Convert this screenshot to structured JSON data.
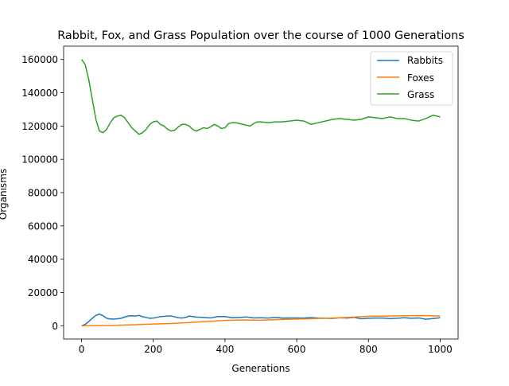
{
  "chart_data": {
    "type": "line",
    "title": "Rabbit, Fox, and Grass Population over the course of 1000 Generations",
    "xlabel": "Generations",
    "ylabel": "Organisms",
    "xlim": [
      -50,
      1050
    ],
    "ylim": [
      -8000,
      168000
    ],
    "xticks": [
      0,
      200,
      400,
      600,
      800,
      1000
    ],
    "yticks": [
      0,
      20000,
      40000,
      60000,
      80000,
      100000,
      120000,
      140000,
      160000
    ],
    "grid": false,
    "legend_position": "top-right",
    "series": [
      {
        "name": "Rabbits",
        "color": "#1f77b4",
        "x": [
          0,
          10,
          20,
          30,
          40,
          50,
          60,
          70,
          80,
          90,
          100,
          110,
          120,
          130,
          140,
          150,
          160,
          170,
          180,
          190,
          200,
          210,
          220,
          230,
          240,
          250,
          260,
          270,
          280,
          290,
          300,
          320,
          340,
          360,
          380,
          400,
          420,
          440,
          460,
          480,
          500,
          520,
          540,
          560,
          580,
          600,
          620,
          640,
          660,
          680,
          700,
          720,
          740,
          760,
          780,
          800,
          820,
          840,
          860,
          880,
          900,
          920,
          940,
          960,
          980,
          1000
        ],
        "y": [
          0,
          800,
          2500,
          4500,
          6200,
          7000,
          6000,
          4500,
          4000,
          4000,
          4200,
          4500,
          5200,
          5800,
          6000,
          5800,
          6200,
          5400,
          5000,
          4500,
          4600,
          5000,
          5500,
          5600,
          5800,
          5900,
          5300,
          4800,
          4600,
          5000,
          5800,
          5200,
          5000,
          4700,
          5500,
          5500,
          4800,
          5000,
          5300,
          4700,
          4800,
          4600,
          5000,
          4600,
          4700,
          4700,
          4600,
          4900,
          4600,
          4500,
          4400,
          4800,
          4600,
          5000,
          4200,
          4500,
          4600,
          4600,
          4300,
          4500,
          4800,
          4500,
          4700,
          3900,
          4300,
          4800
        ]
      },
      {
        "name": "Foxes",
        "color": "#ff7f0e",
        "x": [
          0,
          50,
          100,
          150,
          200,
          250,
          300,
          350,
          400,
          450,
          500,
          550,
          600,
          650,
          700,
          750,
          800,
          850,
          900,
          950,
          1000
        ],
        "y": [
          0,
          100,
          300,
          600,
          1000,
          1300,
          1900,
          2600,
          3200,
          3500,
          3300,
          3700,
          4000,
          4300,
          4600,
          5100,
          5700,
          5800,
          6000,
          6100,
          5900
        ]
      },
      {
        "name": "Grass",
        "color": "#2ca02c",
        "x": [
          0,
          10,
          20,
          30,
          40,
          50,
          60,
          70,
          80,
          90,
          100,
          110,
          120,
          130,
          140,
          150,
          160,
          170,
          180,
          190,
          200,
          210,
          220,
          230,
          240,
          250,
          260,
          270,
          280,
          290,
          300,
          310,
          320,
          330,
          340,
          350,
          360,
          370,
          380,
          390,
          400,
          410,
          420,
          430,
          440,
          450,
          460,
          470,
          480,
          490,
          500,
          520,
          540,
          560,
          580,
          600,
          620,
          640,
          660,
          680,
          700,
          720,
          740,
          760,
          780,
          800,
          820,
          840,
          860,
          880,
          900,
          920,
          940,
          960,
          980,
          1000
        ],
        "y": [
          160000,
          157000,
          148000,
          136000,
          124000,
          117000,
          116000,
          118000,
          122000,
          125000,
          126000,
          126500,
          125000,
          122000,
          119000,
          117000,
          115000,
          116000,
          118000,
          121000,
          122500,
          123000,
          121000,
          120000,
          118000,
          117000,
          117500,
          119500,
          121000,
          121000,
          120000,
          118000,
          117000,
          118000,
          119000,
          118500,
          119500,
          121000,
          120000,
          118500,
          119000,
          121500,
          122000,
          122000,
          121500,
          121000,
          120500,
          120000,
          121500,
          122500,
          122500,
          122000,
          122500,
          122500,
          123000,
          123500,
          123000,
          121000,
          122000,
          123000,
          124000,
          124500,
          124000,
          123500,
          124000,
          125500,
          125000,
          124500,
          125500,
          124500,
          124500,
          123500,
          123000,
          124500,
          126500,
          125500
        ]
      }
    ]
  }
}
